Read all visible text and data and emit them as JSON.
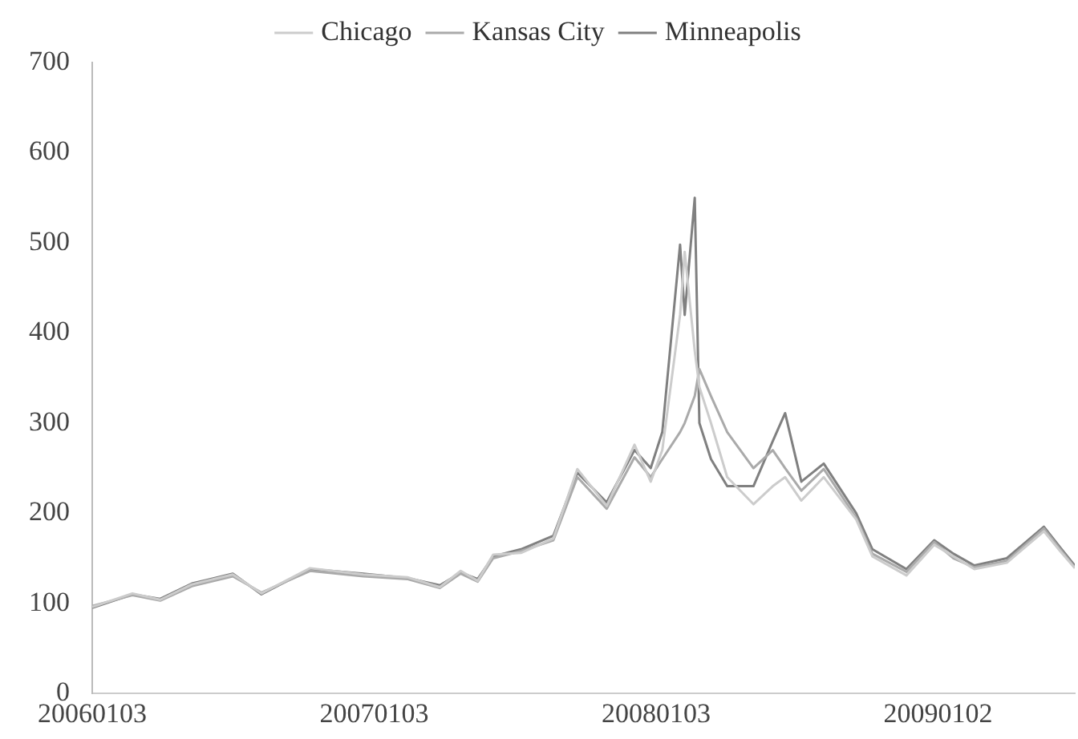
{
  "chart_data": {
    "type": "line",
    "legend": "top",
    "grid": false,
    "marker": "none",
    "line_style": "solid",
    "x": [
      "2006-01-03",
      "2006-02-24",
      "2006-04-01",
      "2006-05-12",
      "2006-07-04",
      "2006-08-10",
      "2006-10-12",
      "2006-12-20",
      "2007-02-15",
      "2007-03-29",
      "2007-04-25",
      "2007-05-17",
      "2007-06-06",
      "2007-07-12",
      "2007-08-23",
      "2007-09-23",
      "2007-10-31",
      "2007-12-06",
      "2007-12-27",
      "2008-01-11",
      "2008-02-03",
      "2008-02-09",
      "2008-02-22",
      "2008-02-28",
      "2008-03-14",
      "2008-04-04",
      "2008-05-08",
      "2008-06-02",
      "2008-06-18",
      "2008-07-09",
      "2008-08-07",
      "2008-09-18",
      "2008-10-09",
      "2008-11-22",
      "2008-12-28",
      "2009-01-22",
      "2009-02-18",
      "2009-04-01",
      "2009-05-19",
      "2009-06-09",
      "2009-06-28"
    ],
    "xlim": [
      "2006-01-03",
      "2009-06-28"
    ],
    "xticks": [
      {
        "value": "2006-01-03",
        "label": "20060103"
      },
      {
        "value": "2007-01-03",
        "label": "20070103"
      },
      {
        "value": "2008-01-03",
        "label": "20080103"
      },
      {
        "value": "2009-01-02",
        "label": "20090102"
      }
    ],
    "ylim": [
      0,
      700
    ],
    "yticks": [
      0,
      100,
      200,
      300,
      400,
      500,
      600,
      700
    ],
    "series": [
      {
        "name": "Chicago",
        "color": "#cccccc",
        "values": [
          96,
          111,
          104,
          121,
          132,
          111,
          139,
          132,
          129,
          118,
          136,
          125,
          154,
          156,
          172,
          249,
          208,
          276,
          235,
          270,
          420,
          490,
          380,
          340,
          300,
          240,
          210,
          230,
          240,
          214,
          240,
          193,
          152,
          131,
          165,
          152,
          138,
          145,
          180,
          158,
          139
        ]
      },
      {
        "name": "Kansas City",
        "color": "#aaaaaa",
        "values": [
          97,
          109,
          103,
          119,
          130,
          112,
          136,
          130,
          127,
          117,
          133,
          124,
          150,
          158,
          170,
          240,
          205,
          262,
          240,
          260,
          290,
          300,
          330,
          360,
          330,
          290,
          250,
          270,
          250,
          225,
          249,
          195,
          155,
          135,
          168,
          150,
          140,
          147,
          183,
          160,
          140
        ]
      },
      {
        "name": "Minneapolis",
        "color": "#808080",
        "values": [
          95,
          110,
          105,
          122,
          133,
          110,
          138,
          133,
          128,
          120,
          134,
          127,
          152,
          160,
          175,
          245,
          212,
          270,
          250,
          290,
          498,
          420,
          550,
          300,
          260,
          230,
          230,
          280,
          311,
          235,
          255,
          200,
          160,
          138,
          170,
          155,
          142,
          150,
          185,
          162,
          142
        ]
      }
    ]
  }
}
